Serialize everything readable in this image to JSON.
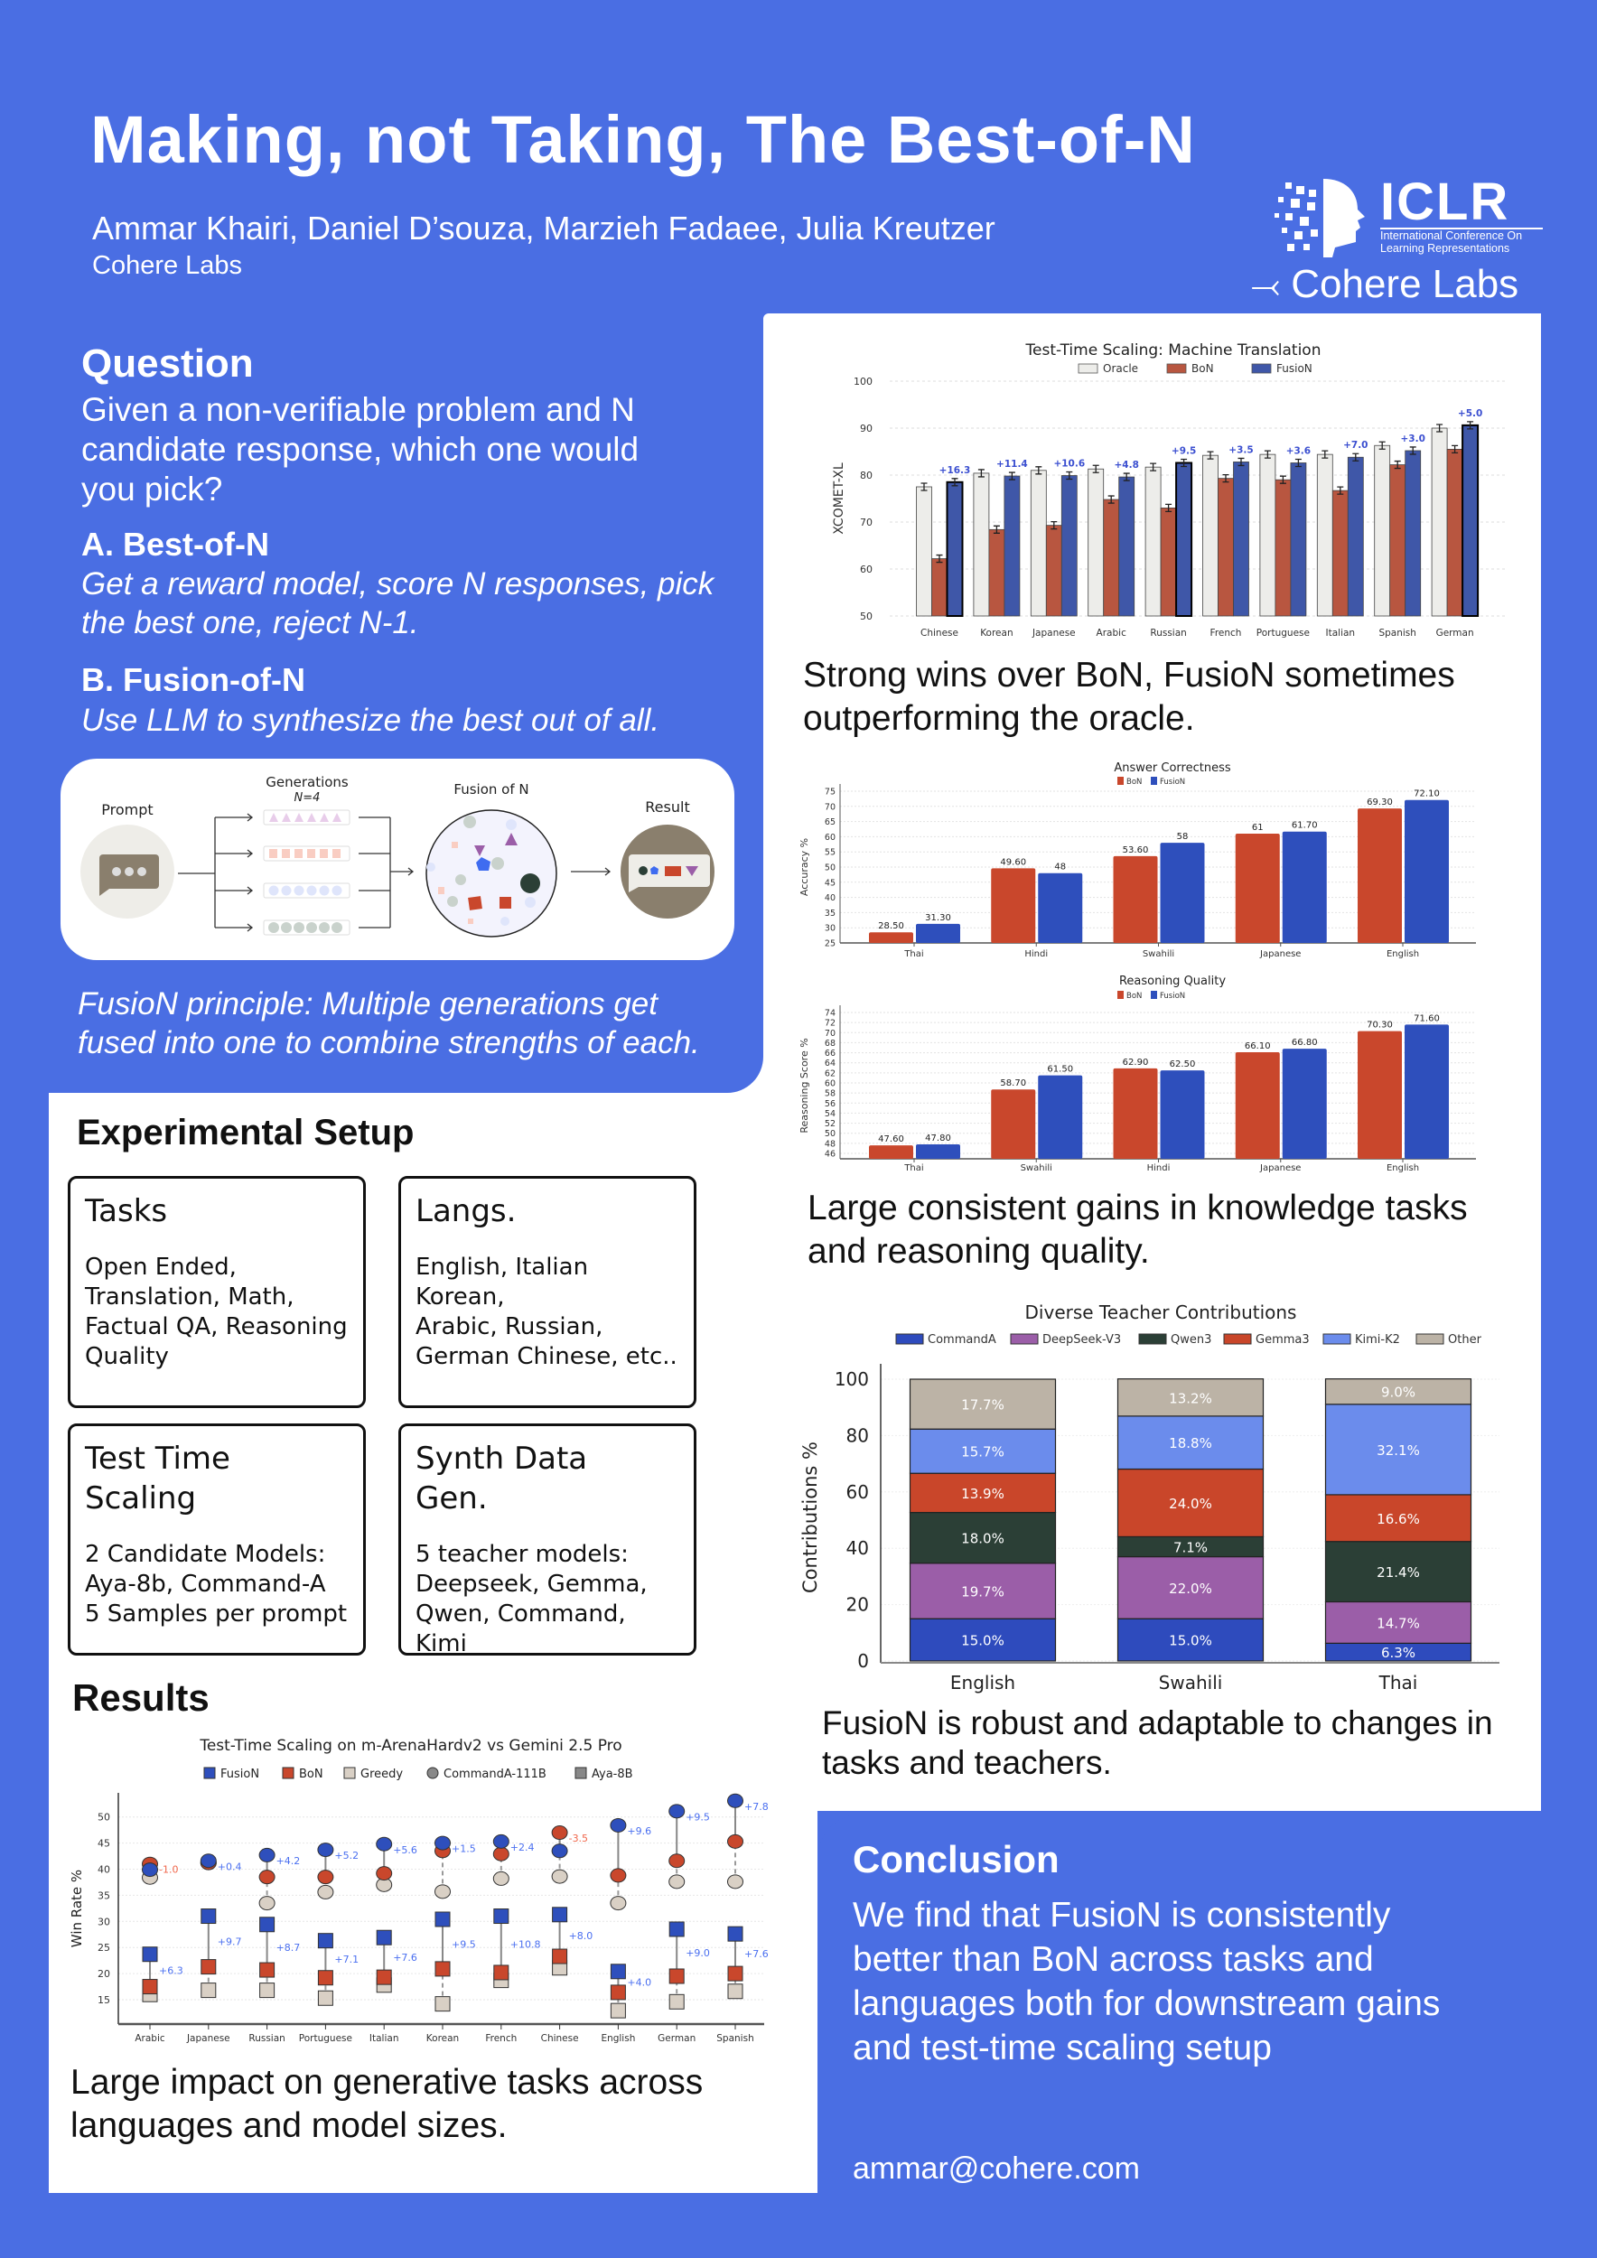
{
  "header": {
    "title": "Making, not Taking, The Best-of-N",
    "authors": "Ammar Khairi, Daniel D’souza, Marzieh Fadaee, Julia Kreutzer",
    "affiliation": "Cohere Labs",
    "iclr_logo": {
      "wordmark": "ICLR",
      "line1": "International Conference On",
      "line2": "Learning Representations"
    },
    "cohere_logo": "Cohere Labs"
  },
  "question": {
    "heading": "Question",
    "body": [
      "Given a non-verifiable problem and N",
      "candidate response, which one would",
      "you pick?"
    ],
    "a_heading": "A. Best-of-N",
    "a_body": [
      "Get a reward model, score N responses, pick",
      "the best one, reject N-1."
    ],
    "b_heading": "B. Fusion-of-N",
    "b_body": "Use LLM to synthesize the best out of all."
  },
  "diagram": {
    "prompt": "Prompt",
    "generations": "Generations",
    "n": "N=4",
    "fusion": "Fusion of N",
    "result": "Result",
    "caption": [
      "FusioN principle: Multiple generations get",
      "fused into one to combine strengths of each."
    ]
  },
  "setup": {
    "heading": "Experimental Setup",
    "boxes": [
      {
        "title": "Tasks",
        "body": [
          "Open Ended,",
          "Translation, Math,",
          "Factual QA, Reasoning",
          "Quality"
        ]
      },
      {
        "title": "Langs.",
        "body": [
          "English, Italian Korean,",
          "Arabic, Russian,",
          "German Chinese, etc.."
        ]
      },
      {
        "title": [
          "Test Time",
          "Scaling"
        ],
        "body": [
          "2 Candidate Models:",
          "Aya-8b, Command-A",
          "5 Samples per prompt"
        ]
      },
      {
        "title": [
          "Synth Data",
          "Gen."
        ],
        "body": [
          "5 teacher models:",
          "Deepseek, Gemma,",
          "Qwen, Command, Kimi"
        ]
      }
    ]
  },
  "results": {
    "heading": "Results",
    "caption": [
      "Large impact on generative tasks across",
      "languages and model sizes."
    ]
  },
  "captions": {
    "mt": [
      "Strong wins over BoN, FusioN sometimes",
      "outperforming the oracle."
    ],
    "knowledge": [
      "Large consistent gains in knowledge tasks",
      "and reasoning quality."
    ],
    "teachers": [
      "FusioN is robust and adaptable to changes in",
      "tasks and teachers."
    ]
  },
  "conclusion": {
    "heading": "Conclusion",
    "body": [
      "We find that FusioN is consistently",
      "better than BoN across tasks and",
      "languages both for downstream gains",
      "and test-time scaling setup"
    ],
    "email": "ammar@cohere.com"
  },
  "colors": {
    "background": "#4a6ee3",
    "fusion": "#2e4fbc",
    "bon": "#c9472c",
    "oracle": "#ededea",
    "greedy": "#d9d0c5",
    "gain_positive": "#4a6ff0",
    "gain_negative": "#f0664a"
  },
  "chart_data": [
    {
      "type": "bar",
      "title": "Test-Time Scaling: Machine Translation",
      "ylabel": "XCOMET-XL",
      "ylim": [
        50,
        100
      ],
      "yticks": [
        "50",
        "60",
        "70",
        "80",
        "90",
        "100"
      ],
      "grid": true,
      "legend": "top",
      "categories": [
        "Chinese",
        "Korean",
        "Japanese",
        "Arabic",
        "Russian",
        "French",
        "Portuguese",
        "Italian",
        "Spanish",
        "German"
      ],
      "series": [
        {
          "name": "Oracle",
          "color": "#ededea",
          "values": [
            77.5,
            80.4,
            81.0,
            81.3,
            81.7,
            84.2,
            84.4,
            84.4,
            86.3,
            90.0
          ]
        },
        {
          "name": "BoN",
          "color": "#b85640",
          "values": [
            62.2,
            68.4,
            69.3,
            74.8,
            73.0,
            79.3,
            79.0,
            76.7,
            82.2,
            85.5
          ]
        },
        {
          "name": "FusioN",
          "color": "#3f57a8",
          "values": [
            78.5,
            79.8,
            79.9,
            79.6,
            82.6,
            82.8,
            82.6,
            83.8,
            85.2,
            90.6
          ]
        }
      ],
      "annotations": [
        "+16.3",
        "+11.4",
        "+10.6",
        "+4.8",
        "+9.5",
        "+3.5",
        "+3.6",
        "+7.0",
        "+3.0",
        "+5.0"
      ]
    },
    {
      "type": "bar",
      "title": "Answer Correctness",
      "ylabel": "Accuracy %",
      "ylim": [
        25,
        75
      ],
      "yticks": [
        "25",
        "30",
        "35",
        "40",
        "45",
        "50",
        "55",
        "60",
        "65",
        "70",
        "75"
      ],
      "grid": true,
      "legend": "top",
      "categories": [
        "Thai",
        "Hindi",
        "Swahili",
        "Japanese",
        "English"
      ],
      "series": [
        {
          "name": "BoN",
          "color": "#c9472c",
          "values": [
            28.5,
            49.6,
            53.6,
            61,
            69.3
          ],
          "labels": [
            "28.50",
            "49.60",
            "53.60",
            "61",
            "69.30"
          ]
        },
        {
          "name": "FusioN",
          "color": "#2e4fbc",
          "values": [
            31.3,
            48,
            58,
            61.7,
            72.1
          ],
          "labels": [
            "31.30",
            "48",
            "58",
            "61.70",
            "72.10"
          ]
        }
      ]
    },
    {
      "type": "bar",
      "title": "Reasoning Quality",
      "ylabel": "Reasoning Score %",
      "ylim": [
        45,
        75
      ],
      "yticks": [
        "46",
        "48",
        "50",
        "52",
        "54",
        "56",
        "58",
        "60",
        "62",
        "64",
        "66",
        "68",
        "70",
        "72",
        "74"
      ],
      "grid": true,
      "legend": "top",
      "categories": [
        "Thai",
        "Swahili",
        "Hindi",
        "Japanese",
        "English"
      ],
      "series": [
        {
          "name": "BoN",
          "color": "#c9472c",
          "values": [
            47.6,
            58.7,
            62.9,
            66.1,
            70.3
          ],
          "labels": [
            "47.60",
            "58.70",
            "62.90",
            "66.10",
            "70.30"
          ]
        },
        {
          "name": "FusioN",
          "color": "#2e4fbc",
          "values": [
            47.8,
            61.5,
            62.5,
            66.8,
            71.6
          ],
          "labels": [
            "47.80",
            "61.50",
            "62.50",
            "66.80",
            "71.60"
          ]
        }
      ]
    },
    {
      "type": "bar",
      "stacked": true,
      "title": "Diverse Teacher Contributions",
      "ylabel": "Contributions %",
      "ylim": [
        0,
        100
      ],
      "yticks": [
        "0",
        "20",
        "40",
        "60",
        "80",
        "100"
      ],
      "legend": "top",
      "categories": [
        "English",
        "Swahili",
        "Thai"
      ],
      "series": [
        {
          "name": "CommandA",
          "color": "#2e4bbd",
          "values": [
            15.0,
            15.0,
            6.3
          ],
          "labels": [
            "15.0%",
            "15.0%",
            "6.3%"
          ]
        },
        {
          "name": "DeepSeek-V3",
          "color": "#9b5ea8",
          "values": [
            19.7,
            22.0,
            14.7
          ],
          "labels": [
            "19.7%",
            "22.0%",
            "14.7%"
          ]
        },
        {
          "name": "Qwen3",
          "color": "#2b3f36",
          "values": [
            18.0,
            7.1,
            21.4
          ],
          "labels": [
            "18.0%",
            "7.1%",
            "21.4%"
          ]
        },
        {
          "name": "Gemma3",
          "color": "#c9462a",
          "values": [
            13.9,
            24.0,
            16.6
          ],
          "labels": [
            "13.9%",
            "24.0%",
            "16.6%"
          ]
        },
        {
          "name": "Kimi-K2",
          "color": "#6b8cec",
          "values": [
            15.7,
            18.8,
            32.1
          ],
          "labels": [
            "15.7%",
            "18.8%",
            "32.1%"
          ]
        },
        {
          "name": "Other",
          "color": "#bcb3a6",
          "values": [
            17.7,
            13.2,
            9.0
          ],
          "labels": [
            "17.7%",
            "13.2%",
            "9.0%"
          ]
        }
      ]
    },
    {
      "type": "scatter",
      "title": "Test-Time Scaling on m-ArenaHardv2 vs Gemini 2.5 Pro",
      "ylabel": "Win Rate %",
      "ylim": [
        11,
        54
      ],
      "yticks": [
        "15",
        "20",
        "25",
        "30",
        "35",
        "40",
        "45",
        "50"
      ],
      "legend": "top",
      "legend_entries": [
        "FusioN",
        "BoN",
        "Greedy",
        "CommandA-111B",
        "Aya-8B"
      ],
      "categories": [
        "Arabic",
        "Japanese",
        "Russian",
        "Portuguese",
        "Italian",
        "Korean",
        "French",
        "Chinese",
        "English",
        "German",
        "Spanish"
      ],
      "commanda_111b": {
        "fusion": [
          39.9,
          41.6,
          42.7,
          43.7,
          44.8,
          45.0,
          45.3,
          43.5,
          48.4,
          51.1,
          53.1
        ],
        "bon": [
          41.0,
          41.2,
          38.5,
          38.5,
          39.2,
          43.5,
          42.9,
          47.0,
          38.8,
          41.6,
          45.3
        ],
        "greedy": [
          38.4,
          41.2,
          33.5,
          35.6,
          37.0,
          35.7,
          38.2,
          38.6,
          33.5,
          37.6,
          37.6
        ],
        "gain_labels": [
          "-1.0",
          "+0.4",
          "+4.2",
          "+5.2",
          "+5.6",
          "+1.5",
          "+2.4",
          "-3.5",
          "+9.6",
          "+9.5",
          "+7.8"
        ]
      },
      "aya_8b": {
        "fusion": [
          23.7,
          31.0,
          29.4,
          26.3,
          26.9,
          30.4,
          31.0,
          31.3,
          20.4,
          28.5,
          27.6
        ],
        "bon": [
          17.5,
          21.3,
          20.7,
          19.2,
          19.3,
          20.9,
          20.2,
          23.3,
          16.4,
          19.5,
          20.0
        ],
        "greedy": [
          16.0,
          16.8,
          16.8,
          15.3,
          17.8,
          14.2,
          18.7,
          21.1,
          12.9,
          14.6,
          16.6
        ],
        "gain_labels": [
          "+6.3",
          "+9.7",
          "+8.7",
          "+7.1",
          "+7.6",
          "+9.5",
          "+10.8",
          "+8.0",
          "+4.0",
          "+9.0",
          "+7.6"
        ]
      }
    }
  ]
}
